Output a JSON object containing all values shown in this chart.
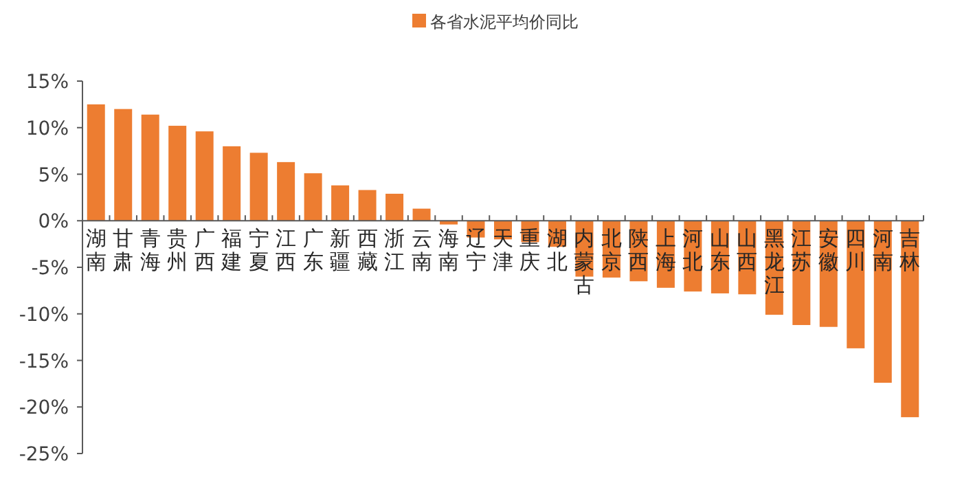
{
  "chart_data": {
    "type": "bar",
    "categories": [
      "湖南",
      "甘肃",
      "青海",
      "贵州",
      "广西",
      "福建",
      "宁夏",
      "江西",
      "广东",
      "新疆",
      "西藏",
      "浙江",
      "云南",
      "海南",
      "辽宁",
      "天津",
      "重庆",
      "湖北",
      "内蒙古",
      "北京",
      "陕西",
      "上海",
      "河北",
      "山东",
      "山西",
      "黑龙江",
      "江苏",
      "安徽",
      "四川",
      "河南",
      "吉林"
    ],
    "series": [
      {
        "name": "各省水泥平均价同比",
        "color": "#ed7d31",
        "values": [
          12.5,
          12.0,
          11.4,
          10.2,
          9.6,
          8.0,
          7.3,
          6.3,
          5.1,
          3.8,
          3.3,
          2.9,
          1.3,
          -0.4,
          -1.8,
          -2.0,
          -2.3,
          -2.8,
          -6.0,
          -6.1,
          -6.5,
          -7.2,
          -7.6,
          -7.8,
          -7.9,
          -10.1,
          -11.2,
          -11.4,
          -13.7,
          -17.4,
          -21.1
        ]
      }
    ],
    "ylim": [
      -25,
      15
    ],
    "yticks": [
      {
        "value": -25,
        "label": "-25%"
      },
      {
        "value": -20,
        "label": "-20%"
      },
      {
        "value": -15,
        "label": "-15%"
      },
      {
        "value": -10,
        "label": "-10%"
      },
      {
        "value": -5,
        "label": "-5%"
      },
      {
        "value": 0,
        "label": "0%"
      },
      {
        "value": 5,
        "label": "5%"
      },
      {
        "value": 10,
        "label": "10%"
      },
      {
        "value": 15,
        "label": "15%"
      }
    ],
    "legend": "top"
  }
}
